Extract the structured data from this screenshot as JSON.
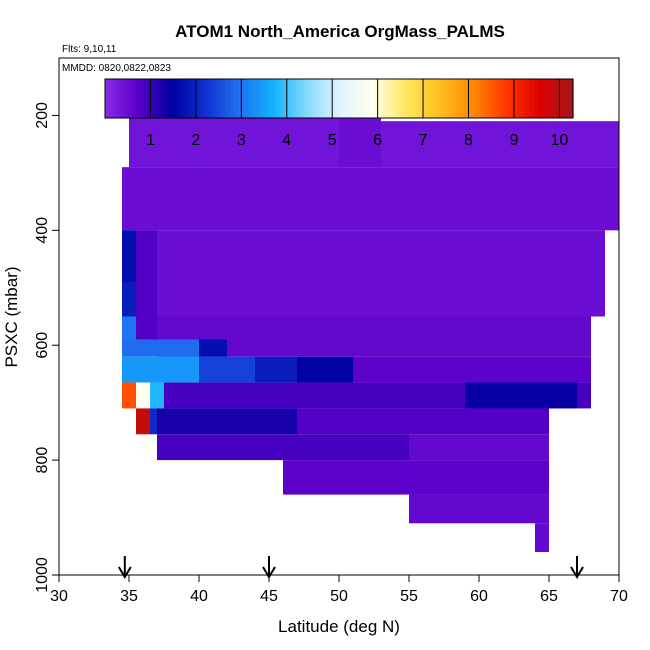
{
  "chart_data": {
    "type": "heatmap",
    "title": "ATOM1 North_America OrgMass_PALMS",
    "flights_note": "Flts: 9,10,11",
    "dates_note": "MMDD: 0820,0822,0823",
    "xlabel": "Latitude (deg N)",
    "ylabel": "PSXC (mbar)",
    "xlim": [
      30,
      70
    ],
    "ylim": [
      1000,
      100
    ],
    "y_reversed": true,
    "x_ticks": [
      30,
      35,
      40,
      45,
      50,
      55,
      60,
      65,
      70
    ],
    "y_ticks": [
      200,
      400,
      600,
      800,
      1000
    ],
    "colorbar": {
      "min": 0,
      "max": 10.3,
      "ticks": [
        1,
        2,
        3,
        4,
        5,
        6,
        7,
        8,
        9,
        10
      ],
      "stops": [
        "#8a2be8",
        "#5a00c8",
        "#0000a0",
        "#1030d0",
        "#2070f0",
        "#10b0ff",
        "#80d8ff",
        "#e0f4ff",
        "#fffff0",
        "#ffe860",
        "#ffc020",
        "#ff8800",
        "#ff3800",
        "#e00000",
        "#a01818"
      ]
    },
    "arrows_latitude": [
      34.7,
      45,
      67
    ],
    "cells": [
      {
        "lat": [
          35,
          50
        ],
        "p": [
          170,
          290
        ],
        "v": 0.4
      },
      {
        "lat": [
          50,
          53
        ],
        "p": [
          170,
          290
        ],
        "v": 0.5
      },
      {
        "lat": [
          53,
          70
        ],
        "p": [
          210,
          290
        ],
        "v": 0.4
      },
      {
        "lat": [
          34.5,
          70
        ],
        "p": [
          290,
          400
        ],
        "v": 0.5
      },
      {
        "lat": [
          34.5,
          69
        ],
        "p": [
          400,
          550
        ],
        "v": 0.5
      },
      {
        "lat": [
          34.5,
          35.5
        ],
        "p": [
          490,
          550
        ],
        "v": 1.9
      },
      {
        "lat": [
          34.5,
          35.5
        ],
        "p": [
          400,
          490
        ],
        "v": 1.7
      },
      {
        "lat": [
          34.5,
          35.5
        ],
        "p": [
          550,
          590
        ],
        "v": 3.0
      },
      {
        "lat": [
          35.5,
          37
        ],
        "p": [
          400,
          590
        ],
        "v": 0.8
      },
      {
        "lat": [
          37,
          68
        ],
        "p": [
          550,
          620
        ],
        "v": 0.6
      },
      {
        "lat": [
          37,
          40
        ],
        "p": [
          590,
          620
        ],
        "v": 1.2
      },
      {
        "lat": [
          40,
          42
        ],
        "p": [
          590,
          620
        ],
        "v": 1.7
      },
      {
        "lat": [
          34.5,
          40
        ],
        "p": [
          590,
          620
        ],
        "v": 2.9
      },
      {
        "lat": [
          34.5,
          40
        ],
        "p": [
          620,
          665
        ],
        "v": 3.4
      },
      {
        "lat": [
          40,
          44
        ],
        "p": [
          620,
          665
        ],
        "v": 2.4
      },
      {
        "lat": [
          44,
          47
        ],
        "p": [
          620,
          665
        ],
        "v": 1.9
      },
      {
        "lat": [
          47,
          51
        ],
        "p": [
          620,
          665
        ],
        "v": 1.5
      },
      {
        "lat": [
          51,
          68
        ],
        "p": [
          620,
          665
        ],
        "v": 0.7
      },
      {
        "lat": [
          34.5,
          35.5
        ],
        "p": [
          665,
          710
        ],
        "v": 8.6
      },
      {
        "lat": [
          35.5,
          36.5
        ],
        "p": [
          665,
          710
        ],
        "v": 5.9
      },
      {
        "lat": [
          36.5,
          37.5
        ],
        "p": [
          665,
          710
        ],
        "v": 3.8
      },
      {
        "lat": [
          37.5,
          68
        ],
        "p": [
          665,
          710
        ],
        "v": 0.9
      },
      {
        "lat": [
          59,
          67
        ],
        "p": [
          665,
          710
        ],
        "v": 1.4
      },
      {
        "lat": [
          35.5,
          36.5
        ],
        "p": [
          710,
          755
        ],
        "v": 9.9
      },
      {
        "lat": [
          36.5,
          37
        ],
        "p": [
          710,
          755
        ],
        "v": 2.1
      },
      {
        "lat": [
          37,
          47
        ],
        "p": [
          710,
          755
        ],
        "v": 1.3
      },
      {
        "lat": [
          47,
          65
        ],
        "p": [
          710,
          755
        ],
        "v": 0.8
      },
      {
        "lat": [
          37,
          55
        ],
        "p": [
          755,
          800
        ],
        "v": 0.9
      },
      {
        "lat": [
          55,
          65
        ],
        "p": [
          755,
          800
        ],
        "v": 0.6
      },
      {
        "lat": [
          46,
          65
        ],
        "p": [
          800,
          860
        ],
        "v": 0.7
      },
      {
        "lat": [
          55,
          65
        ],
        "p": [
          860,
          910
        ],
        "v": 0.6
      },
      {
        "lat": [
          64,
          65
        ],
        "p": [
          910,
          960
        ],
        "v": 0.6
      }
    ]
  }
}
